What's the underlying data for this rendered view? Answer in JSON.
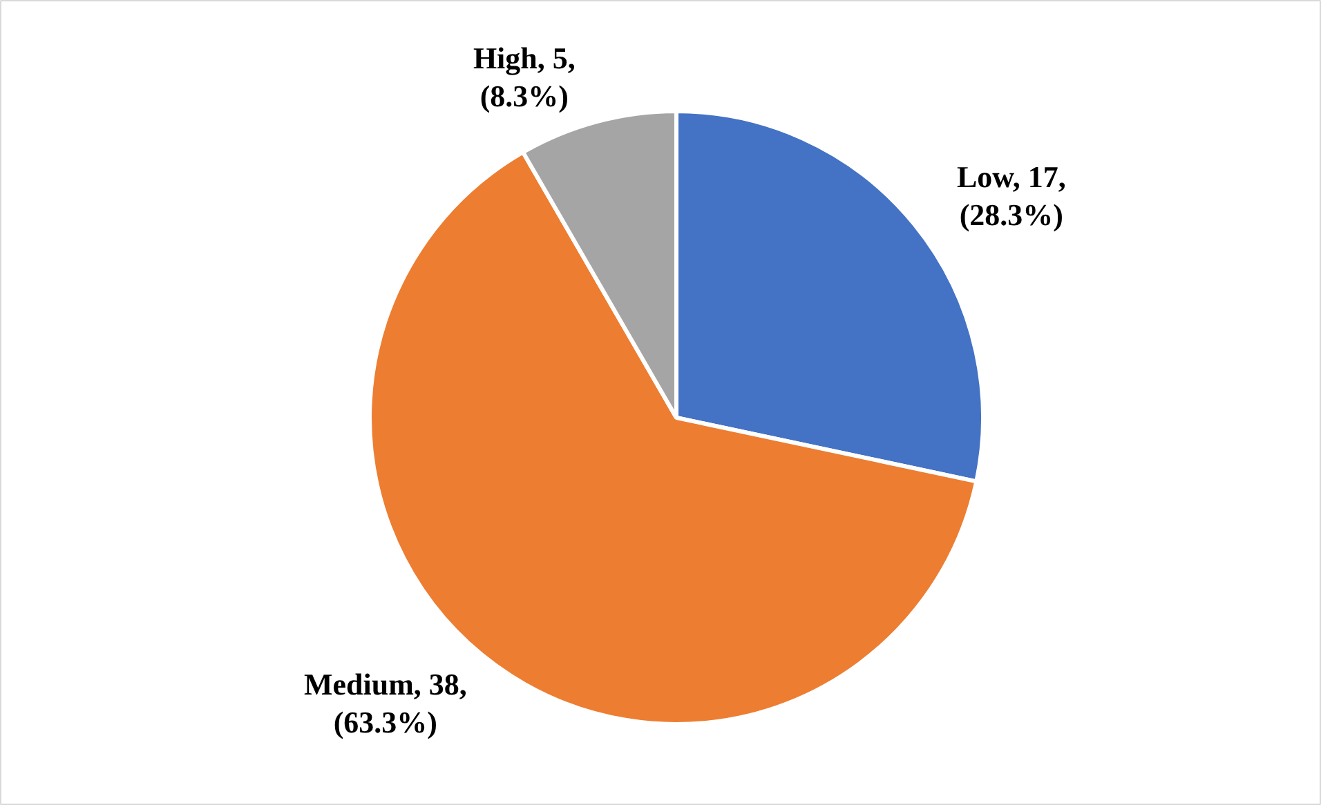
{
  "chart_data": {
    "type": "pie",
    "categories": [
      "Low",
      "Medium",
      "High"
    ],
    "values": [
      17,
      38,
      5
    ],
    "colors": [
      "#4472c4",
      "#ed7d31",
      "#a5a5a5"
    ],
    "value_labels": [
      ", 17,\n(28.3%)",
      ", 38,\n(63.3%)",
      ", 5,\n(8.3%)"
    ]
  }
}
